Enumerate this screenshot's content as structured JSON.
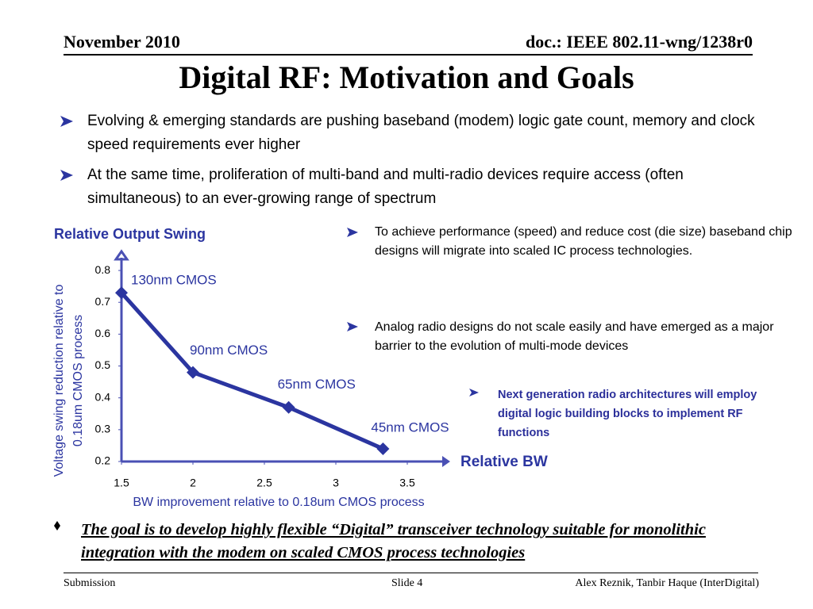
{
  "header": {
    "date": "November 2010",
    "doc": "doc.: IEEE 802.11-wng/1238r0"
  },
  "title": "Digital RF: Motivation and Goals",
  "bullets": [
    "Evolving & emerging standards are pushing baseband (modem) logic gate count, memory and clock speed requirements ever higher",
    "At the same time, proliferation of multi-band and multi-radio devices require access (often simultaneous) to an ever-growing range of spectrum"
  ],
  "side_bullets": [
    "To achieve performance (speed) and reduce cost (die size) baseband chip designs will migrate into scaled IC process technologies.",
    "Analog radio designs do not scale easily and have emerged as a major barrier to the evolution of multi-mode devices"
  ],
  "highlight": "Next generation radio architectures will employ digital logic building blocks to implement RF functions",
  "goal": "The goal is to develop highly flexible “Digital” transceiver technology suitable for monolithic integration with the modem on scaled CMOS process technologies",
  "footer": {
    "left": "Submission",
    "center": "Slide 4",
    "right": "Alex Reznik, Tanbir Haque (InterDigital)"
  },
  "chart_data": {
    "type": "line",
    "title": "Relative Output Swing",
    "ylabel": [
      "Voltage swing reduction  relative to",
      "0.18um CMOS process"
    ],
    "xlabel": "BW improvement relative to 0.18um CMOS process",
    "x_axis_title": "Relative BW",
    "x": [
      1.5,
      2,
      2.67,
      3.33
    ],
    "values": [
      0.73,
      0.48,
      0.37,
      0.24
    ],
    "point_labels": [
      "130nm CMOS",
      "90nm CMOS",
      "65nm CMOS",
      "45nm CMOS"
    ],
    "color": "#2b35a0",
    "xlim": [
      1.5,
      3.8
    ],
    "xticks": [
      1.5,
      2,
      2.5,
      3,
      3.5
    ],
    "ylim": [
      0.2,
      0.86
    ],
    "yticks": [
      0.2,
      0.3,
      0.4,
      0.5,
      0.6,
      0.7,
      0.8
    ]
  }
}
